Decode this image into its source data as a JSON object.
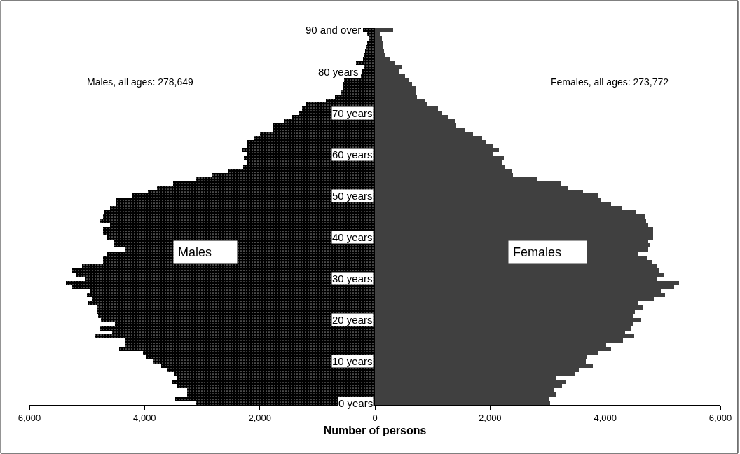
{
  "chart_data": {
    "type": "bar",
    "orientation": "horizontal",
    "stacked": true,
    "xlabel": "Number of persons",
    "categories": [
      "90 and over",
      null,
      null,
      null,
      null,
      null,
      null,
      null,
      null,
      null,
      "80 years",
      null,
      null,
      null,
      null,
      null,
      null,
      null,
      null,
      null,
      "70 years",
      null,
      null,
      null,
      null,
      null,
      null,
      null,
      null,
      null,
      "60 years",
      null,
      null,
      null,
      null,
      null,
      null,
      null,
      null,
      null,
      "50 years",
      null,
      null,
      null,
      null,
      null,
      null,
      null,
      null,
      null,
      "40 years",
      null,
      null,
      null,
      null,
      null,
      null,
      null,
      null,
      null,
      "30 years",
      null,
      null,
      null,
      null,
      null,
      null,
      null,
      null,
      null,
      "20 years",
      null,
      null,
      null,
      null,
      null,
      null,
      null,
      null,
      null,
      "10 years",
      null,
      null,
      null,
      null,
      null,
      null,
      null,
      null,
      null,
      "0 years"
    ],
    "series": [
      {
        "name": "Males",
        "color": "#000000",
        "values": [
          -210,
          -130,
          -110,
          -130,
          -150,
          -170,
          -190,
          -210,
          -330,
          -200,
          -220,
          -240,
          -530,
          -550,
          -560,
          -590,
          -690,
          -850,
          -1210,
          -1260,
          -1320,
          -1440,
          -1580,
          -1760,
          -1760,
          -2000,
          -2090,
          -2210,
          -2210,
          -2310,
          -2210,
          -2270,
          -2230,
          -2290,
          -2550,
          -2820,
          -3120,
          -3510,
          -3790,
          -3940,
          -4210,
          -4490,
          -4490,
          -4600,
          -4700,
          -4720,
          -4780,
          -4600,
          -4720,
          -4720,
          -4660,
          -4540,
          -4540,
          -4350,
          -4660,
          -4720,
          -4720,
          -5090,
          -5260,
          -5180,
          -5030,
          -5370,
          -5260,
          -4940,
          -5000,
          -4900,
          -4990,
          -4820,
          -4820,
          -4810,
          -4760,
          -4520,
          -4770,
          -4560,
          -4870,
          -4330,
          -4330,
          -4440,
          -4030,
          -3970,
          -3850,
          -3710,
          -3610,
          -3480,
          -3440,
          -3520,
          -3440,
          -3260,
          -3260,
          -3470,
          -3110
        ]
      },
      {
        "name": "Females",
        "color": "#404040",
        "values": [
          320,
          80,
          120,
          140,
          140,
          160,
          180,
          260,
          340,
          460,
          420,
          520,
          600,
          640,
          720,
          720,
          730,
          870,
          910,
          1090,
          1170,
          1270,
          1390,
          1410,
          1570,
          1700,
          1860,
          1920,
          2060,
          2160,
          2040,
          2240,
          2200,
          2260,
          2380,
          2400,
          2810,
          3230,
          3350,
          3620,
          3880,
          3920,
          4100,
          4290,
          4530,
          4690,
          4710,
          4750,
          4830,
          4830,
          4830,
          4750,
          4770,
          4750,
          4570,
          4740,
          4820,
          4900,
          4940,
          5030,
          4900,
          5280,
          5200,
          4970,
          5040,
          4840,
          4580,
          4660,
          4510,
          4490,
          4630,
          4490,
          4460,
          4350,
          4500,
          4310,
          4020,
          4100,
          3870,
          3670,
          3660,
          3780,
          3540,
          3480,
          3140,
          3320,
          3250,
          3120,
          3140,
          3030,
          3040
        ]
      }
    ],
    "xlim": [
      -6000,
      6000
    ],
    "xticks": [
      {
        "value": -6000,
        "label": "6,000"
      },
      {
        "value": -4000,
        "label": "4,000"
      },
      {
        "value": -2000,
        "label": "2,000"
      },
      0,
      {
        "value": 2000,
        "label": "2,000"
      },
      {
        "value": 4000,
        "label": "4,000"
      },
      {
        "value": 6000,
        "label": "6,000"
      }
    ],
    "annotations": [
      "Males, all ages: 278,649",
      "Females, all ages: 273,772"
    ],
    "legend": false
  }
}
